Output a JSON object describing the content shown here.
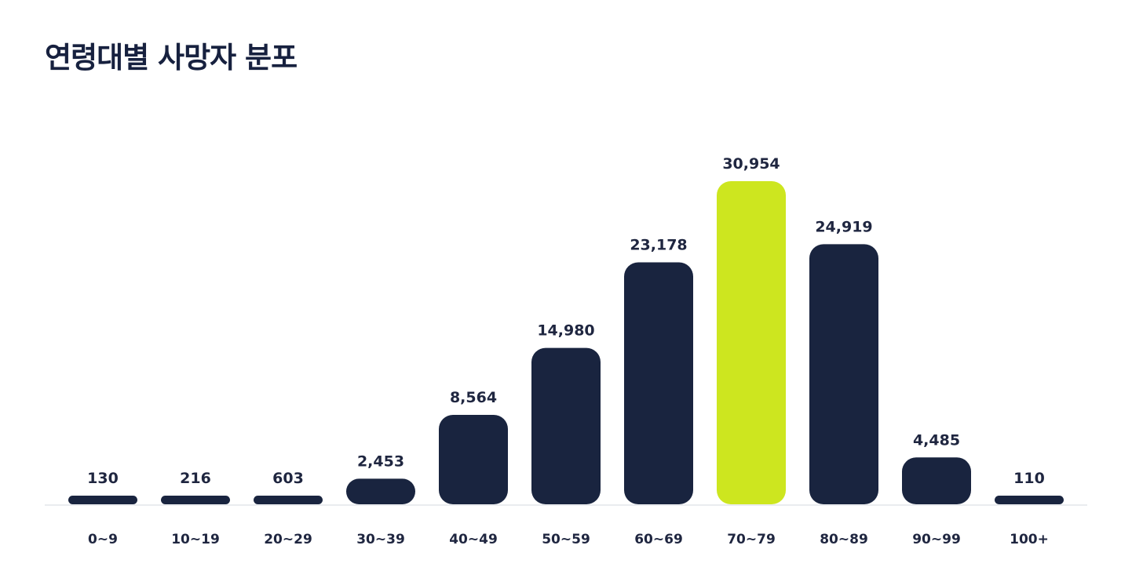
{
  "chart_data": {
    "type": "bar",
    "title": "연령대별 사망자 분포",
    "xlabel": "",
    "ylabel": "",
    "categories": [
      "0~9",
      "10~19",
      "20~29",
      "30~39",
      "40~49",
      "50~59",
      "60~69",
      "70~79",
      "80~89",
      "90~99",
      "100+"
    ],
    "values": [
      130,
      216,
      603,
      2453,
      8564,
      14980,
      23178,
      30954,
      24919,
      4485,
      110
    ],
    "value_labels": [
      "130",
      "216",
      "603",
      "2,453",
      "8,564",
      "14,980",
      "23,178",
      "30,954",
      "24,919",
      "4,485",
      "110"
    ],
    "highlight_category": "70~79",
    "ylim": [
      0,
      30954
    ],
    "grid": false,
    "legend": "none",
    "colors": {
      "bar": "#19243f",
      "highlight": "#cde61f",
      "baseline": "#e3e5ea",
      "title": "#17213f",
      "text": "#1f2640"
    }
  }
}
